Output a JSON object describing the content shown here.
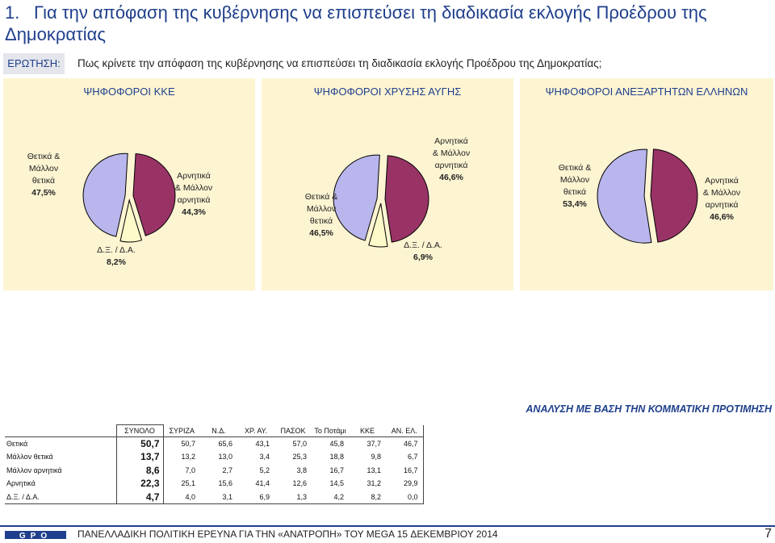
{
  "title": {
    "number": "1.",
    "text": "Για την απόφαση της κυβέρνησης να επισπεύσει  τη διαδικασία εκλογής Προέδρου της Δημοκρατίας"
  },
  "question": {
    "label": "ΕΡΩΤΗΣΗ:",
    "text": "Πως κρίνετε την απόφαση της κυβέρνησης να επισπεύσει τη διαδικασία εκλογής Προέδρου της Δημοκρατίας;"
  },
  "colors": {
    "positive": "#b8b6ec",
    "negative": "#993366",
    "dk": "#fdf9c8",
    "panel_bg": "#fdf4d2",
    "accent": "#1f3f8c"
  },
  "chart_data": [
    {
      "type": "pie",
      "title": "ΨΗΦΟΦΟΡΟΙ ΚΚΕ",
      "slices": [
        {
          "label": "Θετικά & Μάλλον θετικά",
          "value": 47.5,
          "value_label": "47,5%"
        },
        {
          "label": "Δ.Ξ. / Δ.Α.",
          "value": 8.2,
          "value_label": "8,2%"
        },
        {
          "label": "Αρνητικά & Μάλλον αρνητικά",
          "value": 44.3,
          "value_label": "44,3%"
        }
      ]
    },
    {
      "type": "pie",
      "title": "ΨΗΦΟΦΟΡΟΙ ΧΡΥΣΗΣ ΑΥΓΗΣ",
      "slices": [
        {
          "label": "Θετικά & Μάλλον θετικά",
          "value": 46.5,
          "value_label": "46,5%"
        },
        {
          "label": "Δ.Ξ. / Δ.Α.",
          "value": 6.9,
          "value_label": "6,9%"
        },
        {
          "label": "Αρνητικά & Μάλλον αρνητικά",
          "value": 46.6,
          "value_label": "46,6%"
        }
      ]
    },
    {
      "type": "pie",
      "title": "ΨΗΦΟΦΟΡΟΙ ΑΝΕΞΑΡΤΗΤΩΝ ΕΛΛΗΝΩΝ",
      "slices": [
        {
          "label": "Θετικά & Μάλλον θετικά",
          "value": 53.4,
          "value_label": "53,4%"
        },
        {
          "label": "Αρνητικά & Μάλλον αρνητικά",
          "value": 46.6,
          "value_label": "46,6%"
        }
      ]
    }
  ],
  "analysis_title": "ΑΝΑΛΥΣΗ ΜΕ ΒΑΣΗ ΤΗΝ ΚΟΜΜΑΤΙΚΗ ΠΡΟΤΙΜΗΣΗ",
  "table": {
    "headers": [
      "ΣΥΝΟΛΟ",
      "ΣΥΡΙΖΑ",
      "Ν.Δ.",
      "ΧΡ. ΑΥ.",
      "ΠΑΣΟΚ",
      "Το Ποτάμι",
      "ΚΚΕ",
      "ΑΝ. ΕΛ."
    ],
    "rows": [
      {
        "label": "Θετικά",
        "total": "50,7",
        "values": [
          "50,7",
          "65,6",
          "43,1",
          "57,0",
          "45,8",
          "37,7",
          "46,7"
        ]
      },
      {
        "label": "Μάλλον θετικά",
        "total": "13,7",
        "values": [
          "13,2",
          "13,0",
          "3,4",
          "25,3",
          "18,8",
          "9,8",
          "6,7"
        ]
      },
      {
        "label": "Μάλλον αρνητικά",
        "total": "8,6",
        "values": [
          "7,0",
          "2,7",
          "5,2",
          "3,8",
          "16,7",
          "13,1",
          "16,7"
        ]
      },
      {
        "label": "Αρνητικά",
        "total": "22,3",
        "values": [
          "25,1",
          "15,6",
          "41,4",
          "12,6",
          "14,5",
          "31,2",
          "29,9"
        ]
      },
      {
        "label": "Δ.Ξ. / Δ.Α.",
        "total": "4,7",
        "values": [
          "4,0",
          "3,1",
          "6,9",
          "1,3",
          "4,2",
          "8,2",
          "0,0"
        ]
      }
    ]
  },
  "footer": {
    "logo_text": "GPO",
    "text": "ΠΑΝΕΛΛΑΔΙΚΗ ΠΟΛΙΤΙΚΗ ΕΡΕΥΝΑ ΓΙΑ ΤΗΝ «ΑΝΑΤΡΟΠΗ» ΤΟΥ MEGA  15 ΔΕΚΕΜΒΡΙΟΥ 2014",
    "page_number": "7"
  }
}
